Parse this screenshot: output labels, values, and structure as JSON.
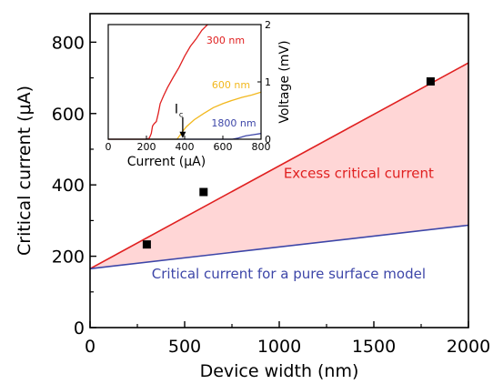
{
  "chart_data": [
    {
      "type": "scatter",
      "xlabel": "Device width (nm)",
      "ylabel": "Critical current (μA)",
      "xlim": [
        0,
        2000
      ],
      "ylim": [
        0,
        880
      ],
      "xticks": [
        0,
        500,
        1000,
        1500,
        2000
      ],
      "yticks": [
        0,
        200,
        400,
        600,
        800
      ],
      "grid": false,
      "series": [
        {
          "kind": "points",
          "x": [
            300,
            600,
            1800
          ],
          "y": [
            233,
            380,
            690
          ],
          "color": "#000000"
        },
        {
          "kind": "line",
          "x": [
            0,
            2000
          ],
          "y": [
            165,
            742
          ],
          "color": "#e02020"
        },
        {
          "kind": "line",
          "x": [
            0,
            2000
          ],
          "y": [
            165,
            287
          ],
          "color": "#3d46a8"
        }
      ],
      "shaded_region": {
        "between": "upper and lower lines",
        "x": [
          0,
          2000
        ],
        "upper": [
          165,
          742
        ],
        "lower": [
          165,
          287
        ],
        "color": "#ffd6d6"
      },
      "annotations": [
        {
          "text": "Excess critical current",
          "x": 1420,
          "y": 420,
          "color": "#e02020"
        },
        {
          "text": "Critical current for a pure surface model",
          "x": 1050,
          "y": 138,
          "color": "#3d46a8"
        }
      ]
    },
    {
      "type": "line",
      "xlabel": "Current (μA)",
      "ylabel": "Voltage (mV)",
      "xlim": [
        0,
        800
      ],
      "ylim": [
        0,
        2
      ],
      "xticks": [
        0,
        200,
        400,
        600,
        800
      ],
      "yticks": [
        0,
        1,
        2
      ],
      "ytick_side": "right",
      "series": [
        {
          "label": "300 nm",
          "color": "#e02020",
          "x": [
            0,
            200,
            215,
            225,
            232,
            240,
            252,
            262,
            272,
            290,
            310,
            340,
            370,
            400,
            430,
            460,
            490,
            520
          ],
          "y": [
            0,
            0,
            0.02,
            0.1,
            0.23,
            0.27,
            0.31,
            0.45,
            0.62,
            0.76,
            0.9,
            1.08,
            1.25,
            1.45,
            1.62,
            1.75,
            1.9,
            2.0
          ]
        },
        {
          "label": "600 nm",
          "color": "#f2b81e",
          "x": [
            0,
            360,
            378,
            390,
            410,
            450,
            500,
            550,
            600,
            650,
            700,
            750,
            800
          ],
          "y": [
            0,
            0,
            0.08,
            0.14,
            0.22,
            0.34,
            0.45,
            0.55,
            0.62,
            0.68,
            0.73,
            0.77,
            0.82
          ]
        },
        {
          "label": "1800 nm",
          "color": "#3d46a8",
          "x": [
            0,
            650,
            680,
            700,
            720,
            760,
            800
          ],
          "y": [
            0,
            0,
            0.02,
            0.04,
            0.06,
            0.08,
            0.1
          ]
        }
      ],
      "arrow_annotation": {
        "text": "I",
        "subscript": "c",
        "target_x": 390,
        "target_y": 0.02
      }
    }
  ]
}
